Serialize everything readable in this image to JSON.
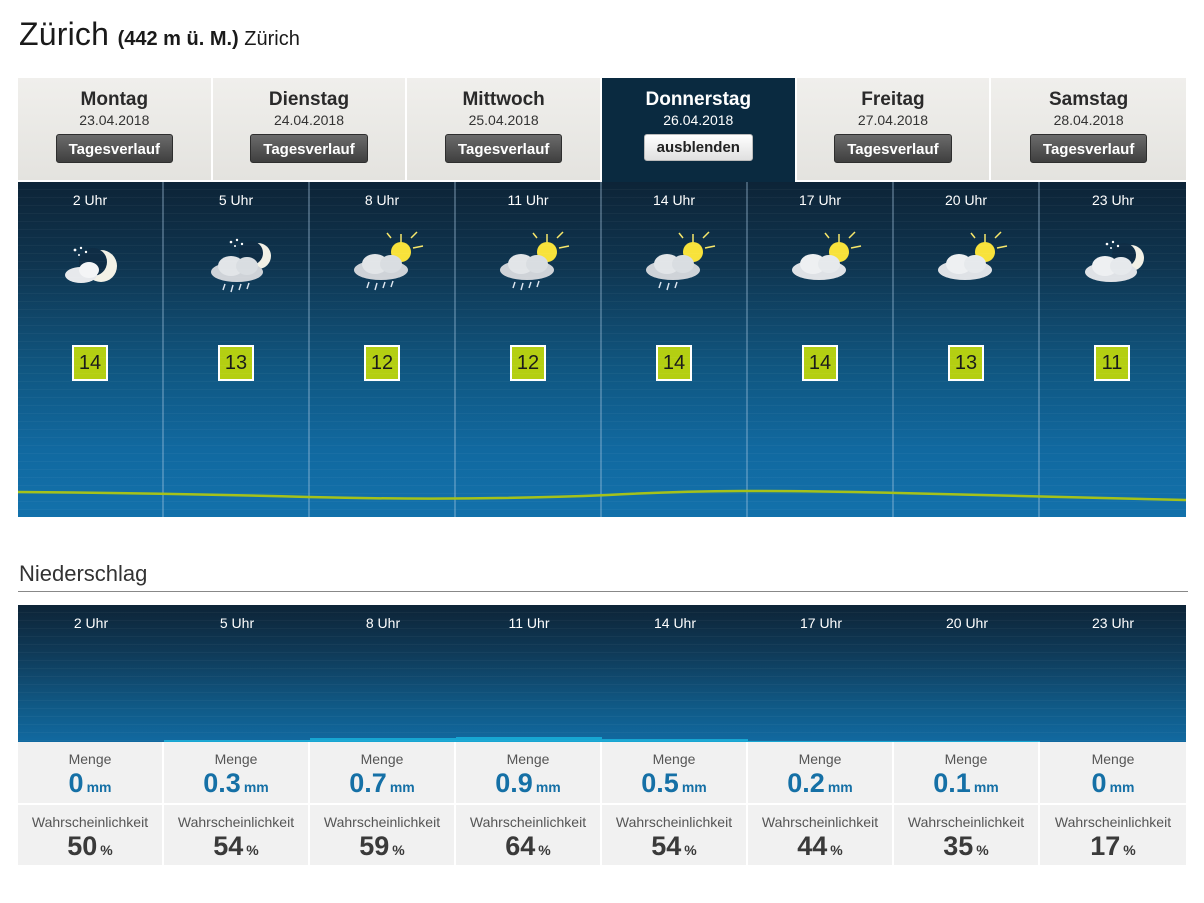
{
  "header": {
    "city": "Zürich",
    "altitude": "(442 m ü. M.)",
    "region": "Zürich"
  },
  "days": [
    {
      "name": "Montag",
      "date": "23.04.2018",
      "button": "Tagesverlauf",
      "active": false
    },
    {
      "name": "Dienstag",
      "date": "24.04.2018",
      "button": "Tagesverlauf",
      "active": false
    },
    {
      "name": "Mittwoch",
      "date": "25.04.2018",
      "button": "Tagesverlauf",
      "active": false
    },
    {
      "name": "Donnerstag",
      "date": "26.04.2018",
      "button": "ausblenden",
      "active": true
    },
    {
      "name": "Freitag",
      "date": "27.04.2018",
      "button": "Tagesverlauf",
      "active": false
    },
    {
      "name": "Samstag",
      "date": "28.04.2018",
      "button": "Tagesverlauf",
      "active": false
    }
  ],
  "hourly": [
    {
      "hour": "2 Uhr",
      "temp": "14",
      "icon": "night-partly-cloudy-icon"
    },
    {
      "hour": "5 Uhr",
      "temp": "13",
      "icon": "night-cloudy-rain-icon"
    },
    {
      "hour": "8 Uhr",
      "temp": "12",
      "icon": "sun-cloud-rain-icon"
    },
    {
      "hour": "11 Uhr",
      "temp": "12",
      "icon": "sun-cloud-rain-icon"
    },
    {
      "hour": "14 Uhr",
      "temp": "14",
      "icon": "sun-cloud-rain-icon"
    },
    {
      "hour": "17 Uhr",
      "temp": "14",
      "icon": "sun-cloud-icon"
    },
    {
      "hour": "20 Uhr",
      "temp": "13",
      "icon": "sun-cloud-icon"
    },
    {
      "hour": "23 Uhr",
      "temp": "11",
      "icon": "night-cloudy-icon"
    }
  ],
  "precipitation": {
    "title": "Niederschlag",
    "amount_label": "Menge",
    "amount_unit": "mm",
    "probability_label": "Wahrscheinlichkeit",
    "probability_unit": "%",
    "items": [
      {
        "hour": "2 Uhr",
        "amount": "0",
        "probability": "50"
      },
      {
        "hour": "5 Uhr",
        "amount": "0.3",
        "probability": "54"
      },
      {
        "hour": "8 Uhr",
        "amount": "0.7",
        "probability": "59"
      },
      {
        "hour": "11 Uhr",
        "amount": "0.9",
        "probability": "64"
      },
      {
        "hour": "14 Uhr",
        "amount": "0.5",
        "probability": "54"
      },
      {
        "hour": "17 Uhr",
        "amount": "0.2",
        "probability": "44"
      },
      {
        "hour": "20 Uhr",
        "amount": "0.1",
        "probability": "35"
      },
      {
        "hour": "23 Uhr",
        "amount": "0",
        "probability": "17"
      }
    ]
  },
  "colors": {
    "temp_badge": "#b4cf12",
    "temp_line": "#a5c21a",
    "precip_bar": "#17a6d2",
    "amount_text": "#1570a6",
    "active_tab": "#0a2a40"
  }
}
